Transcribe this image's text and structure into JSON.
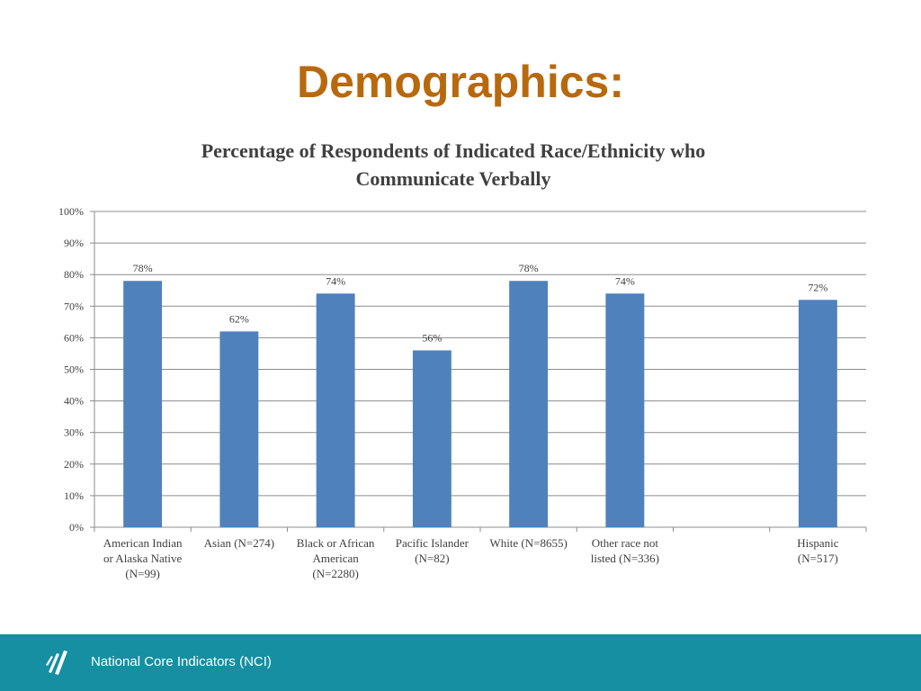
{
  "slide": {
    "title": "Demographics:",
    "title_color": "#b8690e"
  },
  "chart_data": {
    "type": "bar",
    "title_lines": [
      "Percentage of Respondents of Indicated Race/Ethnicity who",
      "Communicate Verbally"
    ],
    "categories": [
      [
        "American Indian",
        "or Alaska Native",
        "(N=99)"
      ],
      [
        "Asian (N=274)"
      ],
      [
        "Black or African",
        "American",
        "(N=2280)"
      ],
      [
        "Pacific Islander",
        "(N=82)"
      ],
      [
        "White (N=8655)"
      ],
      [
        "Other race not",
        "listed (N=336)"
      ],
      [],
      [
        "Hispanic",
        "(N=517)"
      ]
    ],
    "values": [
      78,
      62,
      74,
      56,
      78,
      74,
      null,
      72
    ],
    "value_labels": [
      "78%",
      "62%",
      "74%",
      "56%",
      "78%",
      "74%",
      "",
      "72%"
    ],
    "ylim": [
      0,
      100
    ],
    "yticks": [
      "0%",
      "10%",
      "20%",
      "30%",
      "40%",
      "50%",
      "60%",
      "70%",
      "80%",
      "90%",
      "100%"
    ],
    "grid": true,
    "bar_color": "#4f81bd",
    "grid_color": "#8c8c8c"
  },
  "footer": {
    "text": "National Core Indicators (NCI)",
    "logo": "nci-logo-icon",
    "color": "#168fa2"
  }
}
